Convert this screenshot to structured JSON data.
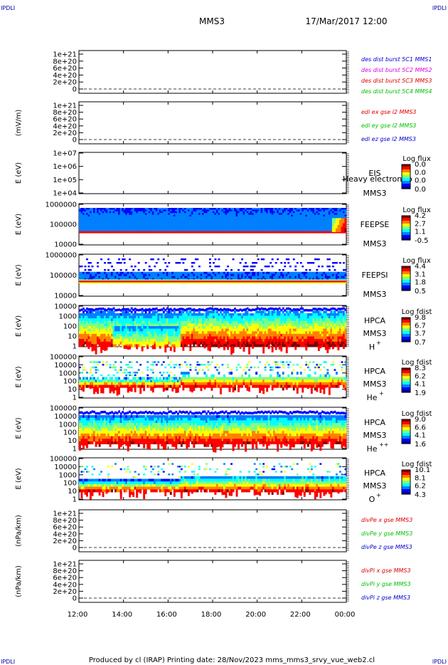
{
  "header": {
    "corner_tl": "IPDLI",
    "corner_tr": "IPDLI",
    "corner_bl": "IPDLI",
    "corner_br": "IPDLI",
    "title": "MMS3",
    "datetime": "17/Mar/2017 12:00"
  },
  "footer": {
    "text": "Produced by cl (IRAP)   Printing date: 28/Nov/2023   mms_mms3_srvy_vue_web2.cl"
  },
  "colors": {
    "red": "#e00000",
    "green": "#00c000",
    "blue": "#0000d0",
    "magenta": "#e000e0"
  },
  "chart_data": {
    "type": "heatmap",
    "x_axis": {
      "ticks": [
        "12:00",
        "14:00",
        "16:00",
        "18:00",
        "20:00",
        "22:00",
        "00:00"
      ]
    },
    "colorbar_colors": [
      "#00008f",
      "#0000ff",
      "#0080ff",
      "#00ffff",
      "#80ff80",
      "#ffff00",
      "#ff8000",
      "#ff0000",
      "#800000"
    ],
    "panels": [
      {
        "id": "des-dist",
        "kind": "line",
        "ylabel": "",
        "yticks": [
          "1e+21",
          "8e+20",
          "6e+20",
          "4e+20",
          "2e+20",
          "0"
        ],
        "legend": [
          {
            "text": "des dist burst 5C1 MMS1",
            "color": "#0000d0"
          },
          {
            "text": "des dist burst 5C2 MMS2",
            "color": "#e000e0"
          },
          {
            "text": "des dist burst 5C3 MMS3",
            "color": "#e00000"
          },
          {
            "text": "des dist burst 5C4 MMS4",
            "color": "#00c000"
          }
        ]
      },
      {
        "id": "edi",
        "kind": "line",
        "ylabel": "(mV/m)",
        "yticks": [
          "1e+21",
          "8e+20",
          "6e+20",
          "4e+20",
          "2e+20",
          "0"
        ],
        "legend": [
          {
            "text": "edi ex gse l2 MMS3",
            "color": "#e00000"
          },
          {
            "text": "edi ey gse l2 MMS3",
            "color": "#00c000"
          },
          {
            "text": "edi ez gse l2 MMS3",
            "color": "#0000d0"
          }
        ]
      },
      {
        "id": "eis",
        "kind": "spectrogram",
        "ylabel": "E (eV)",
        "yticks": [
          "1e+07",
          "1e+06",
          "1e+05",
          "1e+04"
        ],
        "label_lines": [
          "EIS",
          "MMS3"
        ],
        "overlap_text": "Heavy electron to",
        "cbar_title": "Log flux",
        "cbar_ticks": [
          "0.0",
          "0.0",
          "0.0",
          "0.0"
        ]
      },
      {
        "id": "feepse",
        "kind": "spectrogram",
        "ylabel": "E (eV)",
        "yticks": [
          "1000000",
          "100000",
          "10000"
        ],
        "label_lines": [
          "FEEPSE",
          "MMS3"
        ],
        "cbar_title": "Log flux",
        "cbar_ticks": [
          "4.2",
          "2.7",
          "1.1",
          "-0.5"
        ]
      },
      {
        "id": "feepsi",
        "kind": "spectrogram",
        "ylabel": "E (eV)",
        "yticks": [
          "1000000",
          "100000",
          "10000"
        ],
        "label_lines": [
          "FEEPSI",
          "MMS3"
        ],
        "cbar_title": "Log flux",
        "cbar_ticks": [
          "4.4",
          "3.1",
          "1.8",
          "0.5"
        ]
      },
      {
        "id": "hpca-h",
        "kind": "spectrogram",
        "ylabel": "E (eV)",
        "yticks": [
          "10000",
          "1000",
          "100",
          "10",
          "1"
        ],
        "label_lines": [
          "HPCA",
          "MMS3"
        ],
        "species": "H",
        "species_sup": "+",
        "cbar_title": "Log fdist",
        "cbar_ticks": [
          "9.8",
          "6.7",
          "3.7",
          "0.7"
        ]
      },
      {
        "id": "hpca-he",
        "kind": "spectrogram",
        "ylabel": "E (eV)",
        "yticks": [
          "100000",
          "10000",
          "1000",
          "100",
          "10",
          "1"
        ],
        "label_lines": [
          "HPCA",
          "MMS3"
        ],
        "species": "He",
        "species_sup": "+",
        "cbar_title": "Log fdist",
        "cbar_ticks": [
          "8.3",
          "6.2",
          "4.1",
          "1.9"
        ]
      },
      {
        "id": "hpca-hepp",
        "kind": "spectrogram",
        "ylabel": "E (eV)",
        "yticks": [
          "100000",
          "10000",
          "1000",
          "100",
          "10",
          "1"
        ],
        "label_lines": [
          "HPCA",
          "MMS3"
        ],
        "species": "He",
        "species_sup": "++",
        "cbar_title": "Log fdist",
        "cbar_ticks": [
          "9.0",
          "6.6",
          "4.1",
          "1.6"
        ]
      },
      {
        "id": "hpca-o",
        "kind": "spectrogram",
        "ylabel": "E (eV)",
        "yticks": [
          "100000",
          "10000",
          "1000",
          "100",
          "10",
          "1"
        ],
        "label_lines": [
          "HPCA",
          "MMS3"
        ],
        "species": "O",
        "species_sup": "+",
        "cbar_title": "Log fdist",
        "cbar_ticks": [
          "10.1",
          "8.1",
          "6.2",
          "4.3"
        ]
      },
      {
        "id": "divpe",
        "kind": "line",
        "ylabel": "(nPa/km)",
        "yticks": [
          "1e+21",
          "8e+20",
          "6e+20",
          "4e+20",
          "2e+20",
          "0"
        ],
        "legend": [
          {
            "text": "divPe x gse MMS3",
            "color": "#e00000"
          },
          {
            "text": "divPe y gse MMS3",
            "color": "#00c000"
          },
          {
            "text": "divPe z gse MMS3",
            "color": "#0000d0"
          }
        ]
      },
      {
        "id": "divpi",
        "kind": "line",
        "ylabel": "(nPa/km)",
        "yticks": [
          "1e+21",
          "8e+20",
          "6e+20",
          "4e+20",
          "2e+20",
          "0"
        ],
        "legend": [
          {
            "text": "divPi x gse MMS3",
            "color": "#e00000"
          },
          {
            "text": "divPi y gse MMS3",
            "color": "#00c000"
          },
          {
            "text": "divPi z gse MMS3",
            "color": "#0000d0"
          }
        ]
      }
    ]
  }
}
